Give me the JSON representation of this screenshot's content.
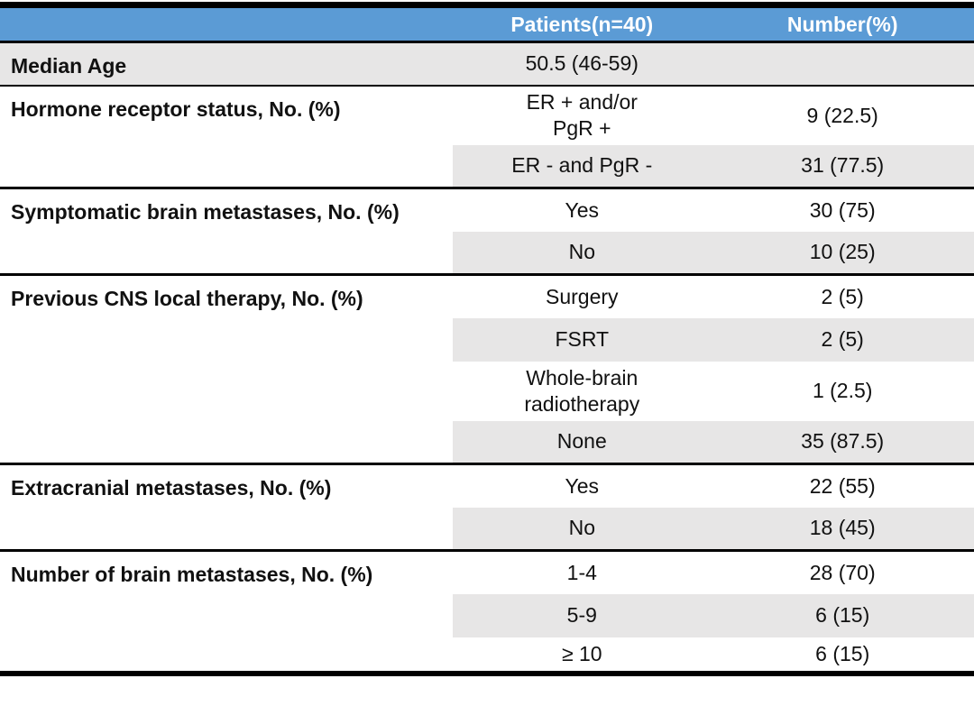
{
  "colors": {
    "header_bg": "#5B9BD5",
    "header_text": "#FFFFFF",
    "row_shade": "#E7E6E6",
    "border": "#000000"
  },
  "header": {
    "label_col": "",
    "patients_label": "Patients(n=40)",
    "number_label": "Number(%)"
  },
  "groups": [
    {
      "label": "Median Age",
      "rows": [
        {
          "patients": "50.5 (46-59)",
          "number": ""
        }
      ]
    },
    {
      "label": "Hormone receptor status, No. (%)",
      "rows": [
        {
          "patients": "ER + and/or\nPgR +",
          "number": "9 (22.5)"
        },
        {
          "patients": "ER - and PgR -",
          "number": "31 (77.5)"
        }
      ]
    },
    {
      "label": "Symptomatic brain metastases, No. (%)",
      "rows": [
        {
          "patients": "Yes",
          "number": "30 (75)"
        },
        {
          "patients": "No",
          "number": "10 (25)"
        }
      ]
    },
    {
      "label": "Previous CNS local therapy, No. (%)",
      "rows": [
        {
          "patients": "Surgery",
          "number": "2 (5)"
        },
        {
          "patients": "FSRT",
          "number": "2 (5)"
        },
        {
          "patients": "Whole-brain\nradiotherapy",
          "number": "1 (2.5)"
        },
        {
          "patients": "None",
          "number": "35 (87.5)"
        }
      ]
    },
    {
      "label": "Extracranial metastases, No. (%)",
      "rows": [
        {
          "patients": "Yes",
          "number": "22 (55)"
        },
        {
          "patients": "No",
          "number": "18 (45)"
        }
      ]
    },
    {
      "label": "Number of brain metastases, No. (%)",
      "rows": [
        {
          "patients": "1-4",
          "number": "28 (70)"
        },
        {
          "patients": "5-9",
          "number": "6 (15)"
        },
        {
          "patients": "≥ 10",
          "number": "6 (15)"
        }
      ]
    }
  ]
}
